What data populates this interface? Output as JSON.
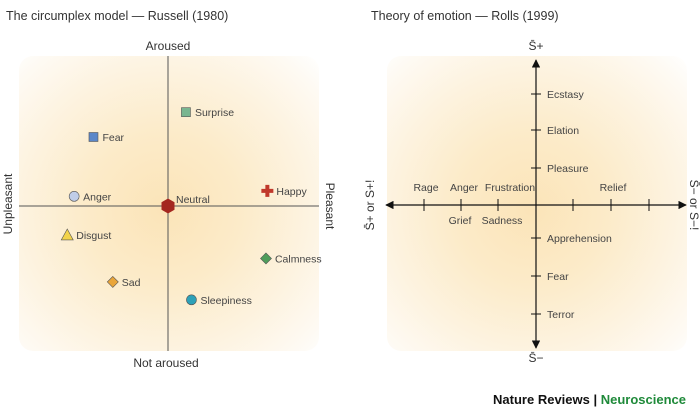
{
  "left_panel": {
    "title": "The circumplex model — Russell (1980)",
    "axis_labels": {
      "top": "Aroused",
      "bottom": "Not aroused",
      "left": "Unpleasant",
      "right": "Pleasant"
    },
    "emotions": [
      {
        "label": "Fear",
        "shape": "square",
        "color": "#5b87c9",
        "valence": -0.54,
        "arousal": 0.5
      },
      {
        "label": "Surprise",
        "shape": "square",
        "color": "#79b690",
        "valence": 0.13,
        "arousal": 0.68
      },
      {
        "label": "Anger",
        "shape": "circle",
        "color": "#c0cde8",
        "valence": -0.68,
        "arousal": 0.07
      },
      {
        "label": "Neutral",
        "shape": "hexagon",
        "color": "#a4271f",
        "valence": 0.0,
        "arousal": 0.0
      },
      {
        "label": "Happy",
        "shape": "cross",
        "color": "#c0392b",
        "valence": 0.72,
        "arousal": 0.11
      },
      {
        "label": "Disgust",
        "shape": "triangle",
        "color": "#f2d34b",
        "valence": -0.73,
        "arousal": -0.21
      },
      {
        "label": "Calmness",
        "shape": "diamond",
        "color": "#4f9d5b",
        "valence": 0.71,
        "arousal": -0.38
      },
      {
        "label": "Sad",
        "shape": "diamond",
        "color": "#e9a53a",
        "valence": -0.4,
        "arousal": -0.55
      },
      {
        "label": "Sleepiness",
        "shape": "circle",
        "color": "#2da1b8",
        "valence": 0.17,
        "arousal": -0.68
      }
    ]
  },
  "right_panel": {
    "title": "Theory of emotion — Rolls (1999)",
    "axis_labels": {
      "top": "S̄+",
      "bottom": "S̄−",
      "left": "S̄+ or S+!",
      "right": "S̄− or S−!"
    },
    "vertical_upper": [
      "Ecstasy",
      "Elation",
      "Pleasure"
    ],
    "vertical_lower": [
      "Apprehension",
      "Fear",
      "Terror"
    ],
    "horizontal_above": [
      "Rage",
      "Anger",
      "Frustration",
      "Relief"
    ],
    "horizontal_below": [
      "Grief",
      "Sadness"
    ]
  },
  "brand": {
    "name": "Nature Reviews",
    "separator": " | ",
    "section": "Neuroscience",
    "section_color": "#1f8a3a"
  }
}
